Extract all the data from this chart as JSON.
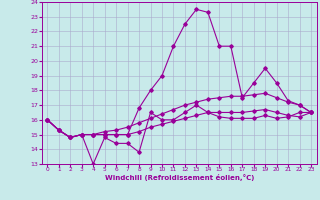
{
  "xlabel": "Windchill (Refroidissement éolien,°C)",
  "bg_color": "#c8eaea",
  "line_color": "#990099",
  "grid_color": "#aaaacc",
  "ylim": [
    13,
    24
  ],
  "xlim": [
    -0.5,
    23.5
  ],
  "yticks": [
    13,
    14,
    15,
    16,
    17,
    18,
    19,
    20,
    21,
    22,
    23,
    24
  ],
  "xticks": [
    0,
    1,
    2,
    3,
    4,
    5,
    6,
    7,
    8,
    9,
    10,
    11,
    12,
    13,
    14,
    15,
    16,
    17,
    18,
    19,
    20,
    21,
    22,
    23
  ],
  "line_volatile": [
    16.0,
    15.3,
    14.8,
    15.0,
    13.0,
    14.8,
    14.4,
    14.4,
    13.8,
    16.5,
    16.0,
    16.0,
    16.5,
    17.0,
    16.5,
    16.2,
    16.1,
    16.1,
    16.1,
    16.3,
    16.1,
    16.2,
    16.5,
    16.5
  ],
  "line_main": [
    16.0,
    15.3,
    14.8,
    15.0,
    15.0,
    15.0,
    15.0,
    15.0,
    16.8,
    18.0,
    19.0,
    21.0,
    22.5,
    23.5,
    23.3,
    21.0,
    21.0,
    17.5,
    18.5,
    19.5,
    18.5,
    17.3,
    17.0,
    16.5
  ],
  "line_upper": [
    16.0,
    15.3,
    14.8,
    15.0,
    15.0,
    15.2,
    15.3,
    15.5,
    15.8,
    16.1,
    16.4,
    16.7,
    17.0,
    17.2,
    17.4,
    17.5,
    17.6,
    17.6,
    17.7,
    17.8,
    17.5,
    17.2,
    17.0,
    16.5
  ],
  "line_lower": [
    16.0,
    15.3,
    14.8,
    15.0,
    15.0,
    15.0,
    15.0,
    15.0,
    15.2,
    15.5,
    15.7,
    15.9,
    16.1,
    16.3,
    16.5,
    16.5,
    16.5,
    16.5,
    16.6,
    16.7,
    16.5,
    16.3,
    16.2,
    16.5
  ]
}
